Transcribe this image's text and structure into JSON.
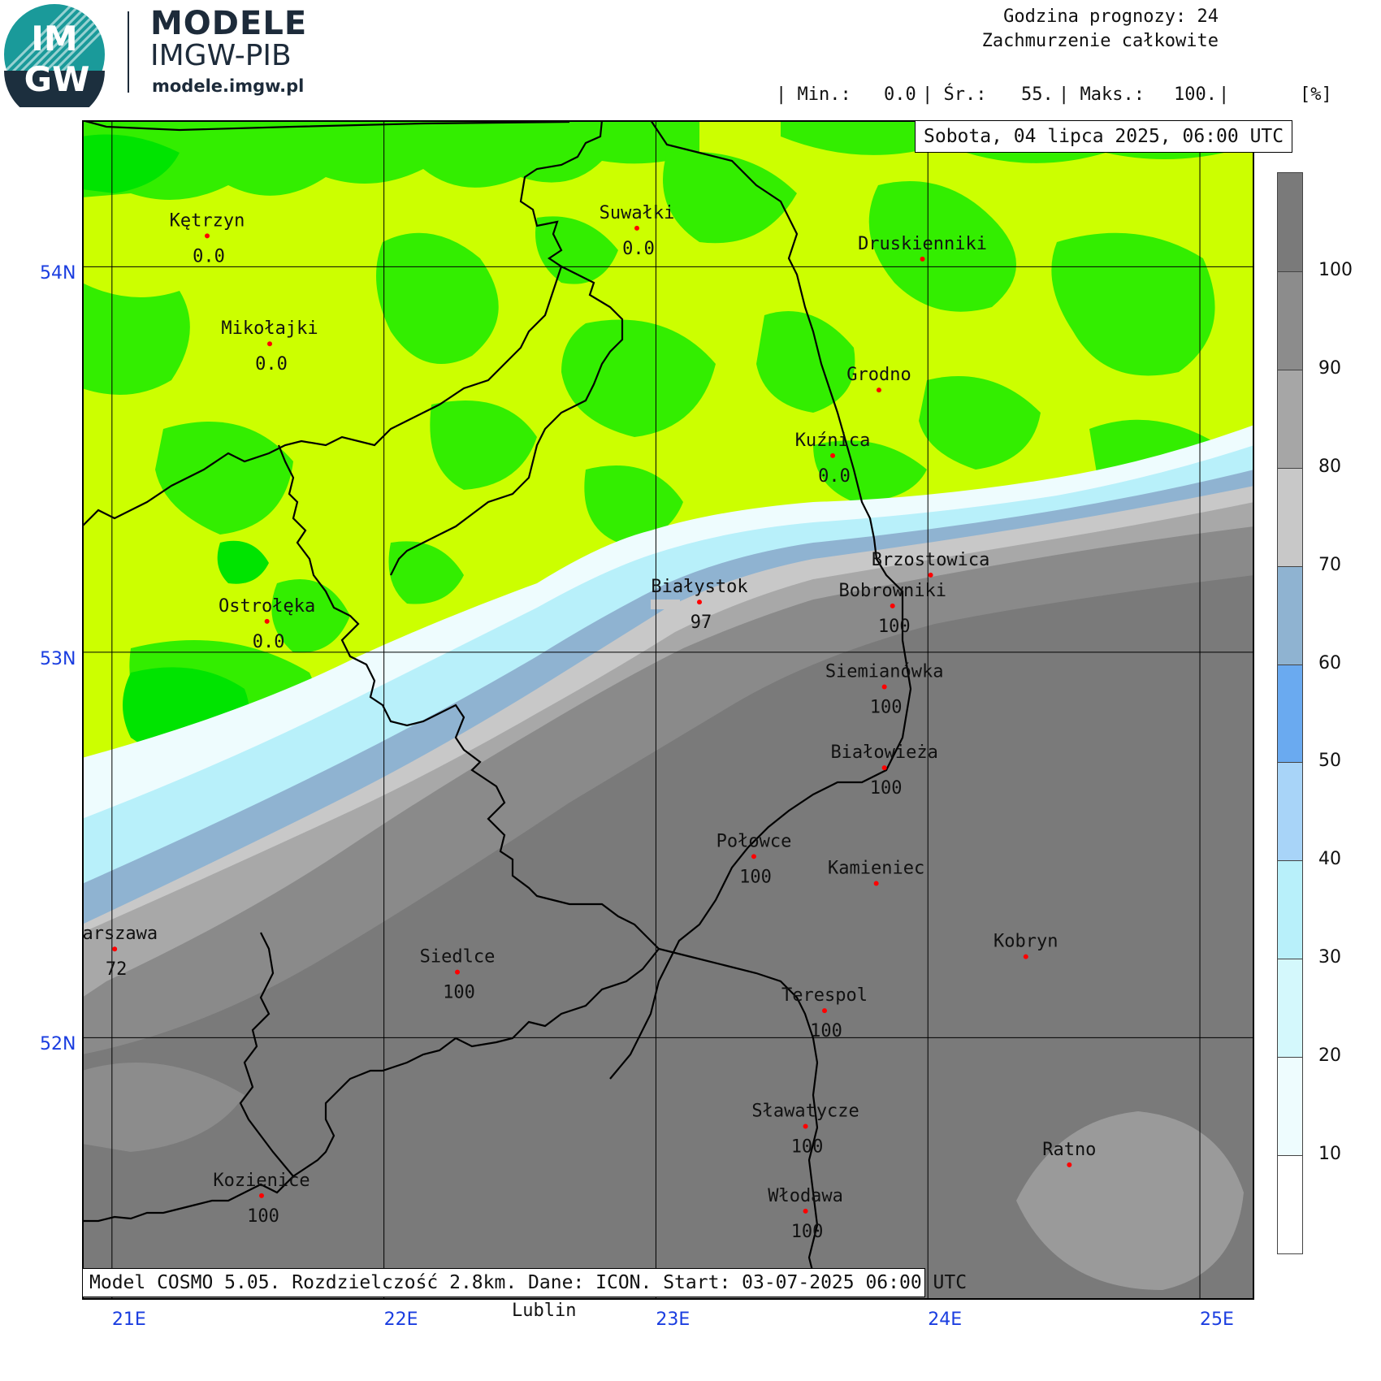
{
  "brand": {
    "logo_top": "IM",
    "logo_bottom": "GW",
    "title": "MODELE",
    "subtitle": "IMGW-PIB",
    "url": "modele.imgw.pl"
  },
  "header": {
    "forecast_hour": "Godzina prognozy: 24",
    "parameter": "Zachmurzenie całkowite",
    "min_label": "| Min.:",
    "min_value": "0.0",
    "mean_label": "| Śr.:",
    "mean_value": "55.",
    "max_label": "| Maks.:",
    "max_value": "100.",
    "sep": "|",
    "unit": "[%]"
  },
  "date_label": "Sobota, 04 lipca 2025, 06:00 UTC",
  "footer_label": "Model COSMO 5.05. Rozdzielczość 2.8km. Dane: ICON. Start: 03-07-2025 06:00 UTC",
  "extra_label": "Lublin",
  "axes": {
    "lon_labels": [
      "21E",
      "22E",
      "23E",
      "24E",
      "25E"
    ],
    "lat_labels": [
      "54N",
      "53N",
      "52N"
    ],
    "lon_values": [
      21,
      22,
      23,
      24,
      25
    ],
    "lat_values": [
      54,
      53,
      52
    ],
    "lon_range": [
      20.89,
      25.2
    ],
    "lat_range": [
      51.32,
      54.38
    ]
  },
  "colorbar": {
    "labels": [
      "100",
      "90",
      "80",
      "70",
      "60",
      "50",
      "40",
      "30",
      "20",
      "10"
    ],
    "colors": [
      "#7a7a7a",
      "#8c8c8c",
      "#a6a6a6",
      "#c8c8c8",
      "#8fb3d1",
      "#6aaaf0",
      "#a8d4f8",
      "#b8f0fa",
      "#d4f8fc",
      "#eefcfe",
      "#ffffff"
    ]
  },
  "colors": {
    "map_green_dark": "#00e400",
    "map_green": "#33ee00",
    "map_yellow_green": "#ccff00",
    "map_gray": "#8a8a8a",
    "map_gray_light": "#a8a8a8",
    "map_gray_dark": "#7a7a7a",
    "city_dot": "#ff0000",
    "axis_label": "#1a3de0"
  },
  "cities": [
    {
      "name": "Kętrzyn",
      "value": "0.0",
      "lon": 21.35,
      "lat": 54.08
    },
    {
      "name": "Mikołajki",
      "value": "0.0",
      "lon": 21.58,
      "lat": 53.8
    },
    {
      "name": "Suwałki",
      "value": "0.0",
      "lon": 22.93,
      "lat": 54.1
    },
    {
      "name": "Druskienniki",
      "value": "",
      "lon": 23.98,
      "lat": 54.02
    },
    {
      "name": "Grodno",
      "value": "",
      "lon": 23.82,
      "lat": 53.68
    },
    {
      "name": "Kuźnica",
      "value": "0.0",
      "lon": 23.65,
      "lat": 53.51
    },
    {
      "name": "Ostrołęka",
      "value": "0.0",
      "lon": 21.57,
      "lat": 53.08
    },
    {
      "name": "Białystok",
      "value": "97",
      "lon": 23.16,
      "lat": 53.13
    },
    {
      "name": "Brzostowica",
      "value": "",
      "lon": 24.01,
      "lat": 53.2
    },
    {
      "name": "Bobrowniki",
      "value": "100",
      "lon": 23.87,
      "lat": 53.12
    },
    {
      "name": "Siemianówka",
      "value": "100",
      "lon": 23.84,
      "lat": 52.91
    },
    {
      "name": "Białowieża",
      "value": "100",
      "lon": 23.84,
      "lat": 52.7
    },
    {
      "name": "Połowce",
      "value": "100",
      "lon": 23.36,
      "lat": 52.47
    },
    {
      "name": "Kamieniec",
      "value": "",
      "lon": 23.81,
      "lat": 52.4
    },
    {
      "name": "Warszawa",
      "value": "72",
      "lon": 21.01,
      "lat": 52.23
    },
    {
      "name": "Siedlce",
      "value": "100",
      "lon": 22.27,
      "lat": 52.17
    },
    {
      "name": "Kobryn",
      "value": "",
      "lon": 24.36,
      "lat": 52.21
    },
    {
      "name": "Terespol",
      "value": "100",
      "lon": 23.62,
      "lat": 52.07
    },
    {
      "name": "Sławatycze",
      "value": "100",
      "lon": 23.55,
      "lat": 51.77
    },
    {
      "name": "Ratno",
      "value": "",
      "lon": 24.52,
      "lat": 51.67
    },
    {
      "name": "Kozienice",
      "value": "100",
      "lon": 21.55,
      "lat": 51.59
    },
    {
      "name": "Włodawa",
      "value": "100",
      "lon": 23.55,
      "lat": 51.55
    }
  ]
}
